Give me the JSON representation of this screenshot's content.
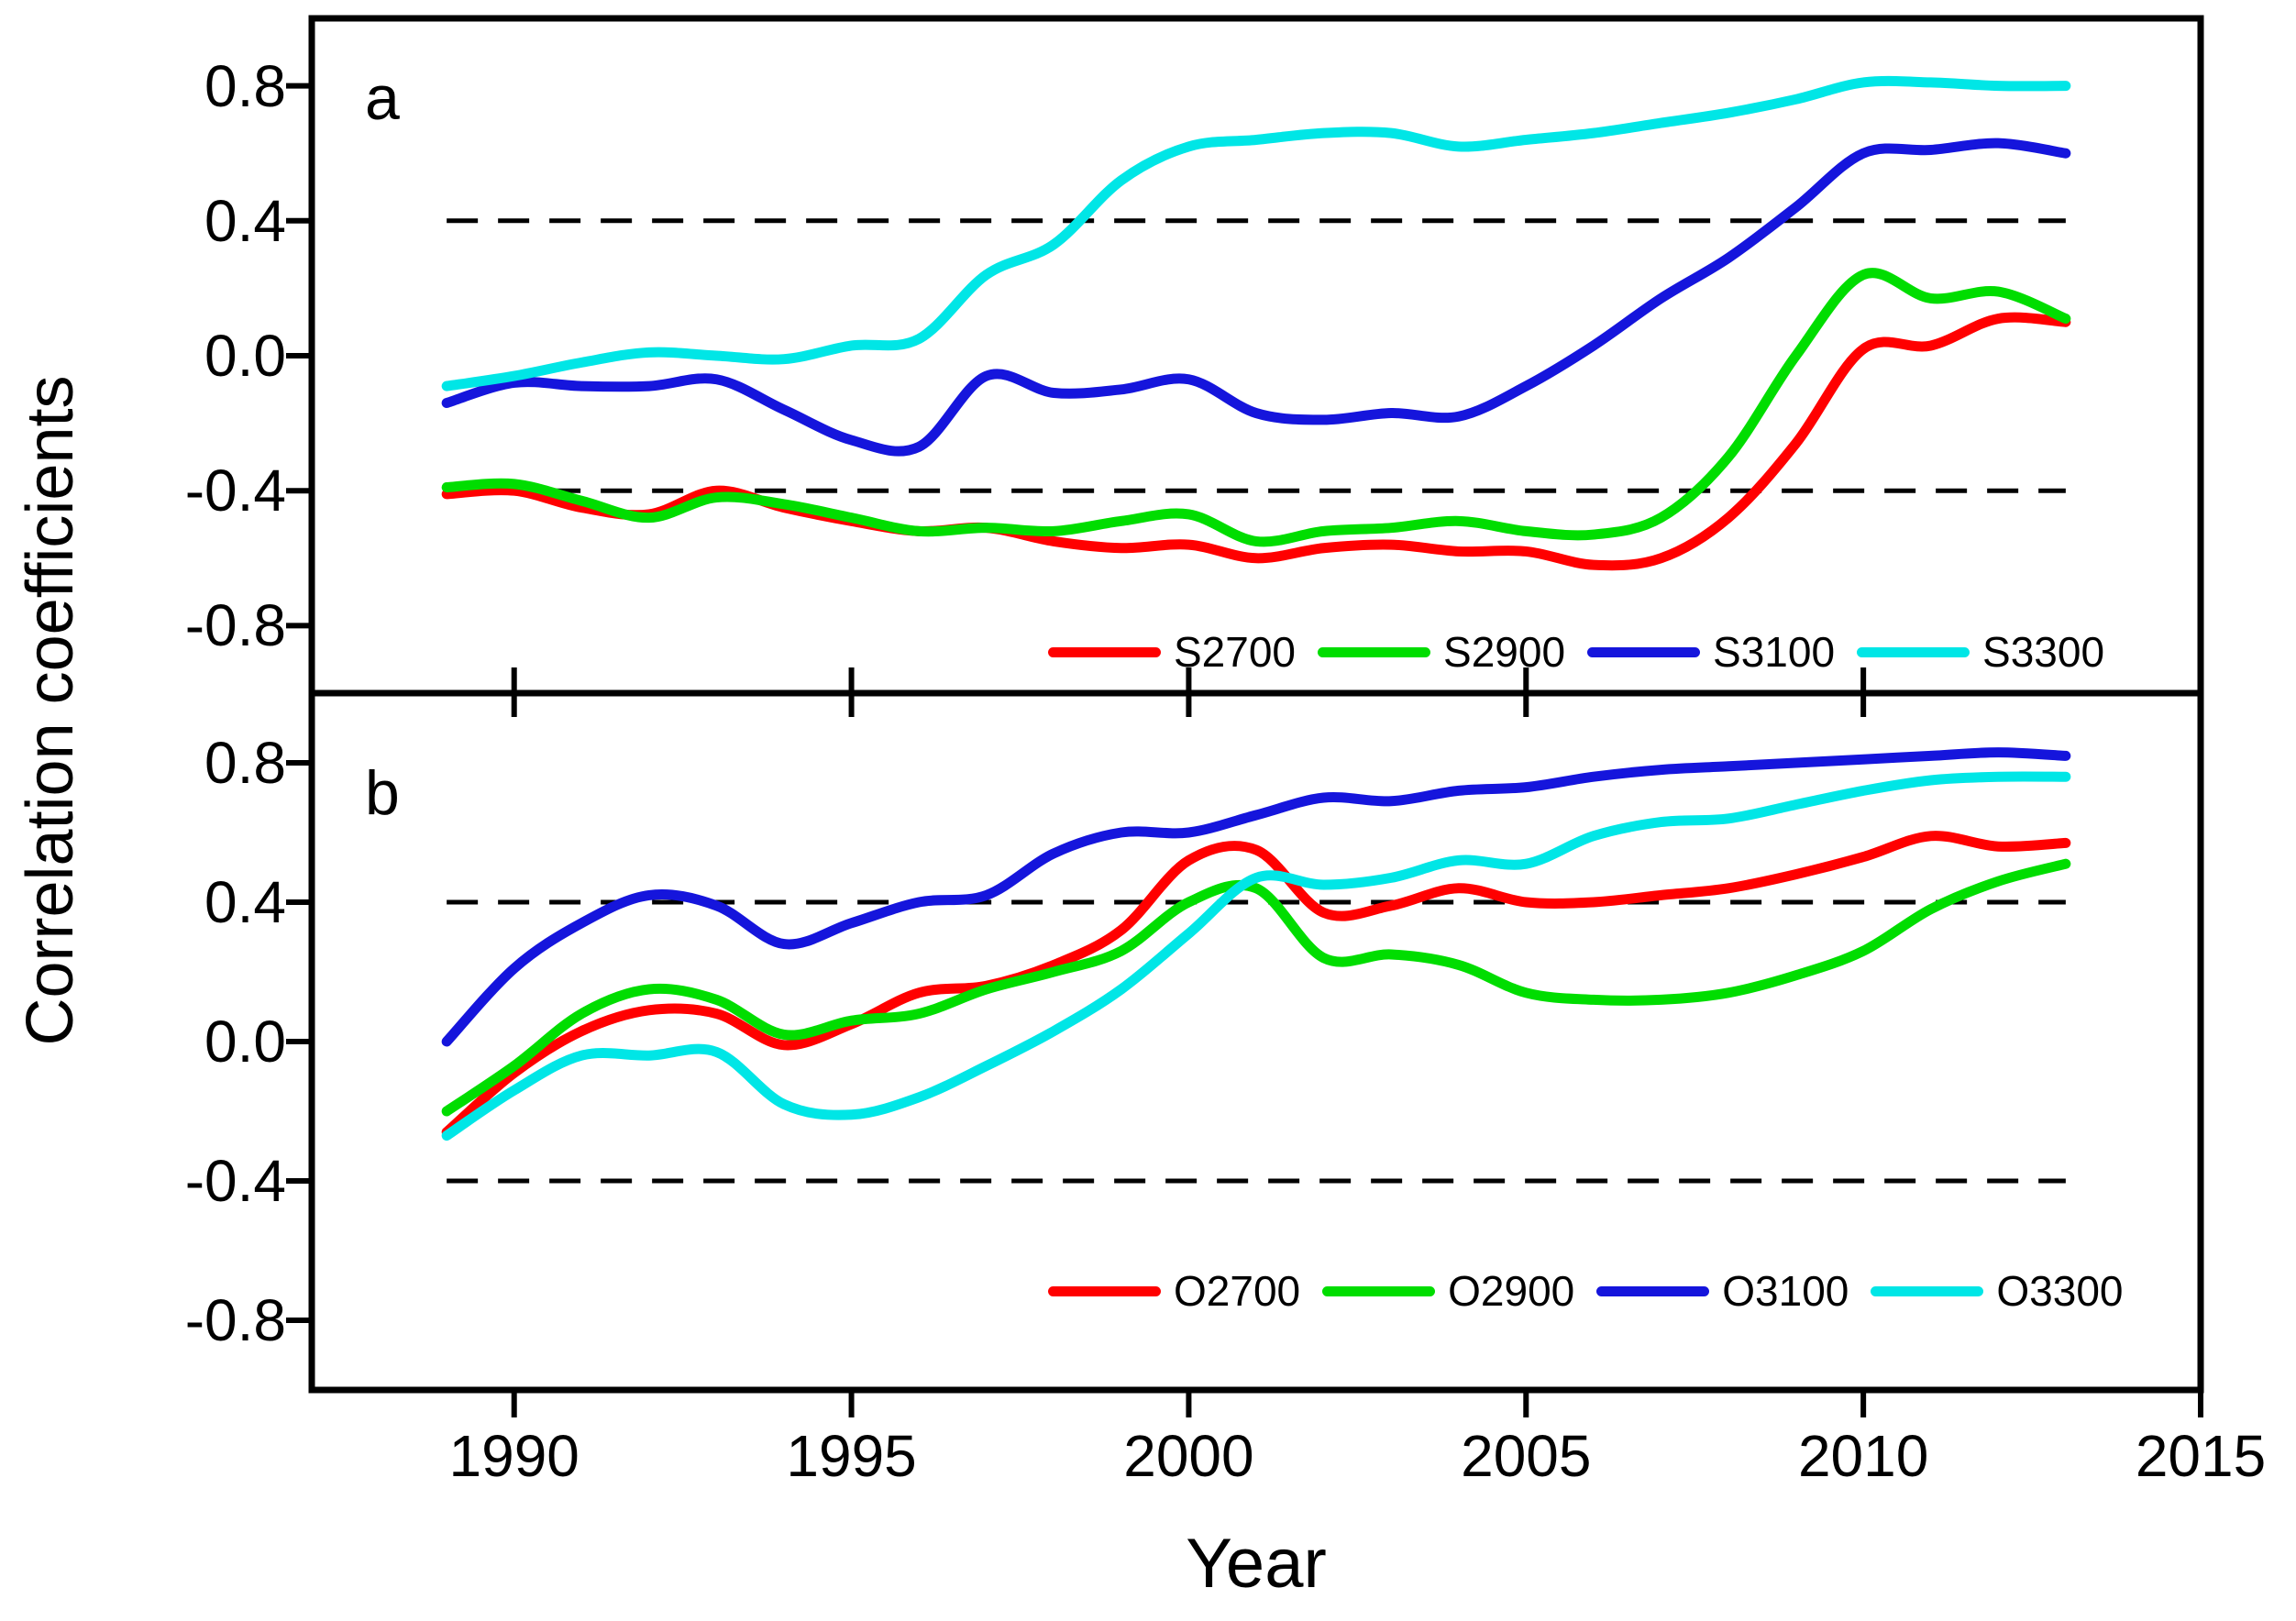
{
  "figure": {
    "y_axis_title": "Correlation coefficients",
    "x_axis_title": "Year",
    "panels": [
      {
        "letter": "a"
      },
      {
        "letter": "b"
      }
    ]
  },
  "axes": {
    "x_tick_labels": [
      "1990",
      "1995",
      "2000",
      "2005",
      "2010",
      "2015"
    ],
    "x_tick_years": [
      1990,
      1995,
      2000,
      2005,
      2010,
      2015
    ],
    "y_tick_labels": [
      "0.8",
      "0.4",
      "0.0",
      "-0.4",
      "-0.8"
    ],
    "y_tick_values": [
      0.8,
      0.4,
      0.0,
      -0.4,
      -0.8
    ]
  },
  "style": {
    "axis_color": "#000000",
    "reference_line_color": "#000000",
    "text_color": "#000000"
  },
  "chart_data": [
    {
      "type": "line",
      "panel_label": "a",
      "xlabel": "Year",
      "ylabel": "Correlation coefficients",
      "xlim": [
        1987,
        2015
      ],
      "ylim": [
        -1.0,
        1.0
      ],
      "reference_lines_y": [
        0.4,
        -0.4
      ],
      "grid": false,
      "legend_position": "inside-bottom-right",
      "x": [
        1989,
        1990,
        1991,
        1992,
        1993,
        1994,
        1995,
        1996,
        1997,
        1998,
        1999,
        2000,
        2001,
        2002,
        2003,
        2004,
        2005,
        2006,
        2007,
        2008,
        2009,
        2010,
        2011,
        2012,
        2013
      ],
      "series": [
        {
          "name": "S2700",
          "color": "#ff0000",
          "values": [
            -0.41,
            -0.4,
            -0.45,
            -0.47,
            -0.4,
            -0.45,
            -0.49,
            -0.52,
            -0.51,
            -0.55,
            -0.57,
            -0.56,
            -0.6,
            -0.57,
            -0.56,
            -0.58,
            -0.58,
            -0.62,
            -0.6,
            -0.48,
            -0.26,
            0.02,
            0.03,
            0.11,
            0.1
          ]
        },
        {
          "name": "S2900",
          "color": "#00dd00",
          "values": [
            -0.39,
            -0.38,
            -0.43,
            -0.48,
            -0.42,
            -0.44,
            -0.48,
            -0.52,
            -0.51,
            -0.52,
            -0.49,
            -0.47,
            -0.55,
            -0.52,
            -0.51,
            -0.49,
            -0.52,
            -0.53,
            -0.48,
            -0.3,
            0.0,
            0.24,
            0.17,
            0.19,
            0.11
          ]
        },
        {
          "name": "S3100",
          "color": "#1515dc",
          "values": [
            -0.14,
            -0.08,
            -0.09,
            -0.09,
            -0.07,
            -0.16,
            -0.25,
            -0.27,
            -0.06,
            -0.11,
            -0.1,
            -0.07,
            -0.17,
            -0.19,
            -0.17,
            -0.18,
            -0.09,
            0.03,
            0.17,
            0.29,
            0.44,
            0.6,
            0.61,
            0.63,
            0.6
          ]
        },
        {
          "name": "S3300",
          "color": "#00e6e6",
          "values": [
            -0.09,
            -0.06,
            -0.02,
            0.01,
            0.0,
            -0.01,
            0.03,
            0.05,
            0.24,
            0.33,
            0.52,
            0.62,
            0.64,
            0.66,
            0.66,
            0.62,
            0.64,
            0.66,
            0.69,
            0.72,
            0.76,
            0.81,
            0.81,
            0.8,
            0.8
          ]
        }
      ]
    },
    {
      "type": "line",
      "panel_label": "b",
      "xlabel": "Year",
      "ylabel": "Correlation coefficients",
      "xlim": [
        1987,
        2015
      ],
      "ylim": [
        -1.0,
        1.0
      ],
      "reference_lines_y": [
        0.4,
        -0.4
      ],
      "grid": false,
      "legend_position": "inside-bottom-right",
      "x": [
        1989,
        1990,
        1991,
        1992,
        1993,
        1994,
        1995,
        1996,
        1997,
        1998,
        1999,
        2000,
        2001,
        2002,
        2003,
        2004,
        2005,
        2006,
        2007,
        2008,
        2009,
        2010,
        2011,
        2012,
        2013
      ],
      "series": [
        {
          "name": "O2700",
          "color": "#ff0000",
          "values": [
            -0.26,
            -0.09,
            0.03,
            0.09,
            0.08,
            -0.01,
            0.05,
            0.14,
            0.16,
            0.22,
            0.32,
            0.52,
            0.55,
            0.37,
            0.39,
            0.44,
            0.4,
            0.4,
            0.42,
            0.44,
            0.48,
            0.53,
            0.59,
            0.56,
            0.57
          ]
        },
        {
          "name": "O2900",
          "color": "#00dd00",
          "values": [
            -0.2,
            -0.07,
            0.08,
            0.15,
            0.12,
            0.02,
            0.06,
            0.08,
            0.15,
            0.2,
            0.26,
            0.4,
            0.44,
            0.24,
            0.25,
            0.22,
            0.14,
            0.12,
            0.12,
            0.14,
            0.19,
            0.26,
            0.38,
            0.46,
            0.51
          ]
        },
        {
          "name": "O3100",
          "color": "#1515dc",
          "values": [
            0.0,
            0.21,
            0.34,
            0.42,
            0.39,
            0.28,
            0.34,
            0.4,
            0.42,
            0.54,
            0.6,
            0.6,
            0.65,
            0.7,
            0.69,
            0.72,
            0.73,
            0.76,
            0.78,
            0.79,
            0.8,
            0.81,
            0.82,
            0.83,
            0.82
          ]
        },
        {
          "name": "O3300",
          "color": "#00e6e6",
          "values": [
            -0.27,
            -0.14,
            -0.04,
            -0.04,
            -0.03,
            -0.18,
            -0.21,
            -0.16,
            -0.07,
            0.03,
            0.15,
            0.31,
            0.47,
            0.45,
            0.47,
            0.52,
            0.51,
            0.59,
            0.63,
            0.64,
            0.68,
            0.72,
            0.75,
            0.76,
            0.76
          ]
        }
      ]
    }
  ]
}
